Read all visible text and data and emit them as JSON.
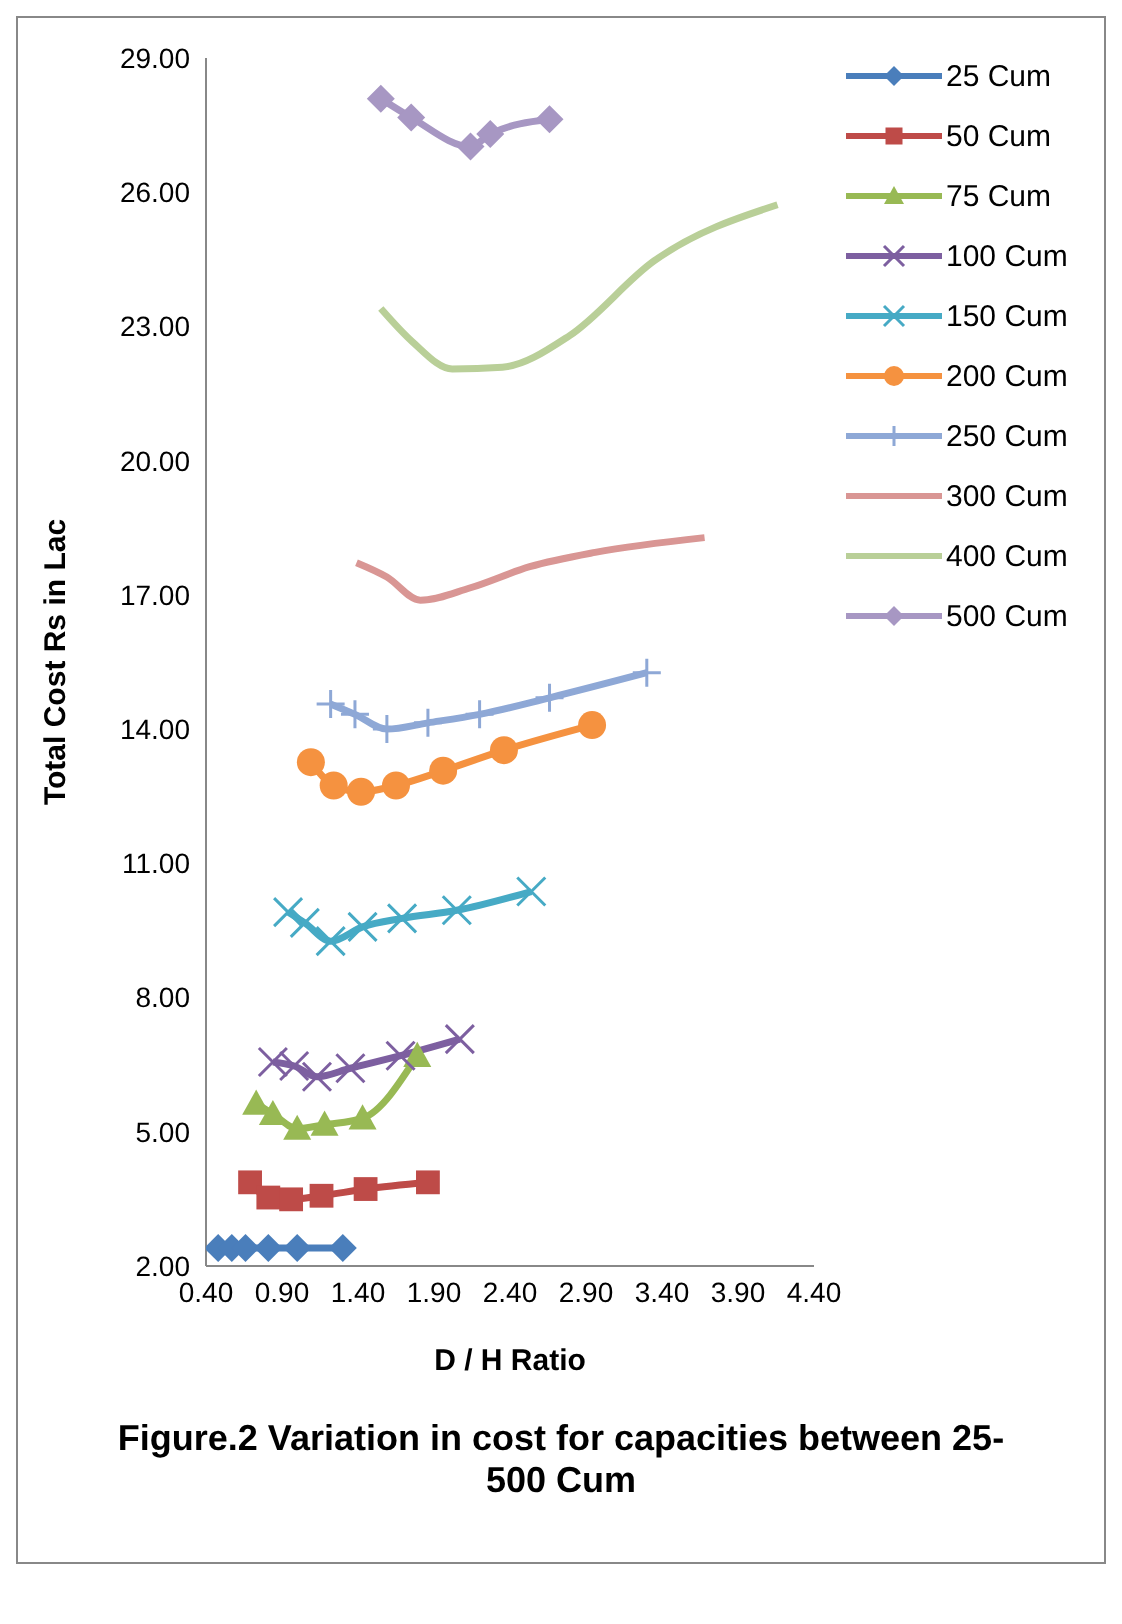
{
  "chart_data": {
    "type": "line",
    "title": "Figure.2 Variation in cost for capacities between 25-500 Cum",
    "xlabel": "D / H Ratio",
    "ylabel": "Total Cost Rs in Lac",
    "xlim": [
      0.4,
      4.4
    ],
    "xticks": [
      {
        "value": 0.4,
        "label": "0.40"
      },
      {
        "value": 0.9,
        "label": "0.90"
      },
      {
        "value": 1.4,
        "label": "1.40"
      },
      {
        "value": 1.9,
        "label": "1.90"
      },
      {
        "value": 2.4,
        "label": "2.40"
      },
      {
        "value": 2.9,
        "label": "2.90"
      },
      {
        "value": 3.4,
        "label": "3.40"
      },
      {
        "value": 3.9,
        "label": "3.90"
      },
      {
        "value": 4.4,
        "label": "4.40"
      }
    ],
    "ylim": [
      2,
      29
    ],
    "yticks": [
      {
        "value": 2,
        "label": "2.00"
      },
      {
        "value": 5,
        "label": "5.00"
      },
      {
        "value": 8,
        "label": "8.00"
      },
      {
        "value": 11,
        "label": "11.00"
      },
      {
        "value": 14,
        "label": "14.00"
      },
      {
        "value": 17,
        "label": "17.00"
      },
      {
        "value": 20,
        "label": "20.00"
      },
      {
        "value": 23,
        "label": "23.00"
      },
      {
        "value": 26,
        "label": "26.00"
      },
      {
        "value": 29,
        "label": "29.00"
      }
    ],
    "grid": false,
    "legend": "right",
    "line_style": "solid",
    "series": [
      {
        "name": "25 Cum",
        "color": "#4a7ebb",
        "marker": "diamond",
        "x": [
          0.48,
          0.57,
          0.66,
          0.81,
          1.0,
          1.3
        ],
        "values": [
          2.4,
          2.4,
          2.4,
          2.4,
          2.4,
          2.4
        ]
      },
      {
        "name": "50 Cum",
        "color": "#be4b48",
        "marker": "square",
        "x": [
          0.69,
          0.81,
          0.96,
          1.16,
          1.45,
          1.86
        ],
        "values": [
          3.87,
          3.53,
          3.49,
          3.57,
          3.72,
          3.87
        ]
      },
      {
        "name": "75 Cum",
        "color": "#98b954",
        "marker": "triangle",
        "x": [
          0.73,
          0.84,
          1.0,
          1.18,
          1.43,
          1.79
        ],
        "values": [
          5.63,
          5.4,
          5.07,
          5.16,
          5.3,
          6.7
        ]
      },
      {
        "name": "100 Cum",
        "color": "#7d5fa0",
        "marker": "cross",
        "x": [
          0.84,
          0.98,
          1.13,
          1.35,
          1.68,
          2.07
        ],
        "values": [
          6.56,
          6.47,
          6.23,
          6.42,
          6.7,
          7.07
        ]
      },
      {
        "name": "150 Cum",
        "color": "#46aac5",
        "marker": "cross",
        "x": [
          0.94,
          1.05,
          1.22,
          1.43,
          1.69,
          2.05,
          2.54
        ],
        "values": [
          9.91,
          9.67,
          9.26,
          9.58,
          9.77,
          9.95,
          10.37
        ]
      },
      {
        "name": "200 Cum",
        "color": "#f59240",
        "marker": "circle",
        "x": [
          1.09,
          1.24,
          1.42,
          1.65,
          1.96,
          2.36,
          2.94
        ],
        "values": [
          13.26,
          12.74,
          12.6,
          12.74,
          13.07,
          13.53,
          14.09
        ]
      },
      {
        "name": "250 Cum",
        "color": "#8ea8d6",
        "marker": "plus",
        "x": [
          1.22,
          1.38,
          1.59,
          1.86,
          2.2,
          2.66,
          3.3
        ],
        "values": [
          14.56,
          14.33,
          14.0,
          14.14,
          14.33,
          14.7,
          15.26
        ]
      },
      {
        "name": "300 Cum",
        "color": "#d99694",
        "marker": "none",
        "x": [
          1.39,
          1.59,
          1.81,
          2.14,
          2.53,
          2.96,
          3.68
        ],
        "values": [
          17.72,
          17.4,
          16.88,
          17.16,
          17.63,
          17.95,
          18.28
        ]
      },
      {
        "name": "400 Cum",
        "color": "#b9cf98",
        "marker": "none",
        "x": [
          1.55,
          1.76,
          2.02,
          2.35,
          2.79,
          3.35,
          4.16
        ],
        "values": [
          23.4,
          22.65,
          22.05,
          22.09,
          22.79,
          24.47,
          25.72
        ]
      },
      {
        "name": "500 Cum",
        "color": "#a797c3",
        "marker": "diamond",
        "x": [
          1.55,
          1.75,
          2.14,
          2.27,
          2.66
        ],
        "values": [
          28.09,
          27.67,
          27.02,
          27.3,
          27.63
        ]
      }
    ]
  }
}
